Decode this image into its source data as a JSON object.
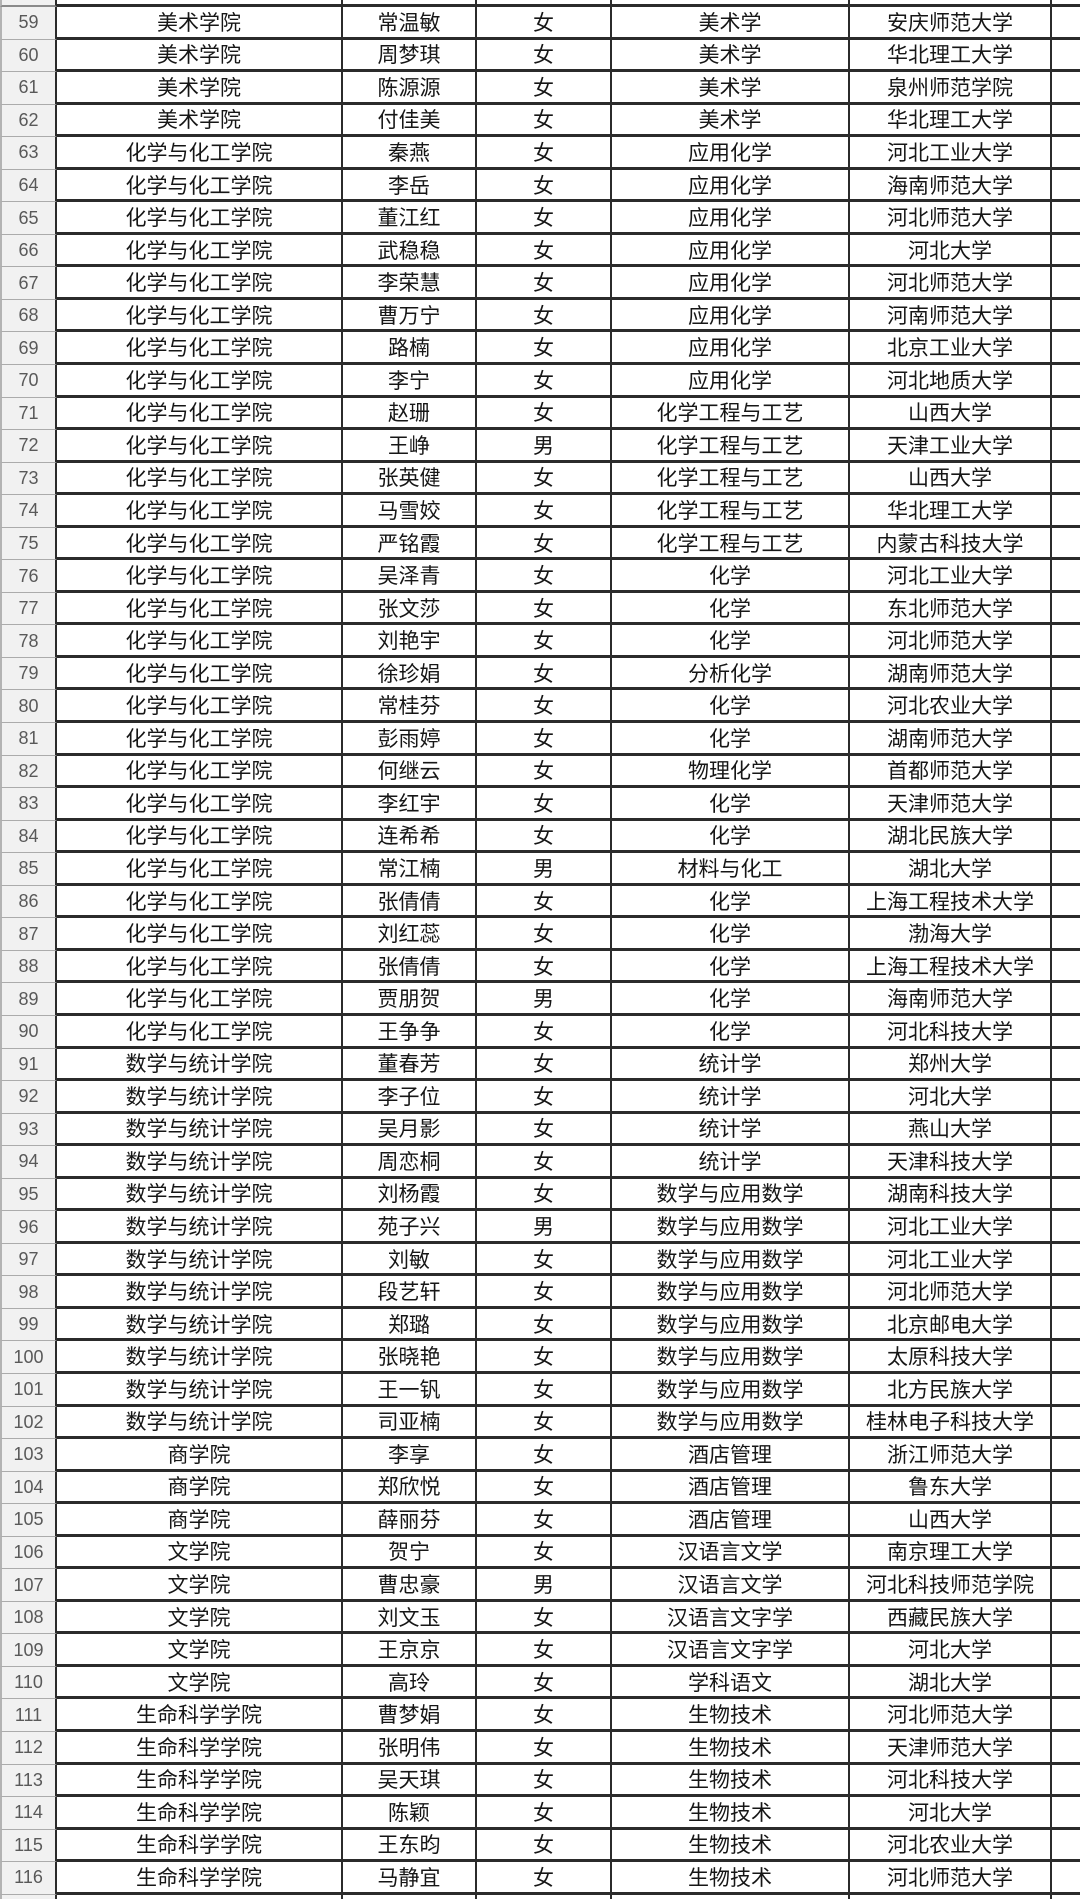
{
  "table": {
    "rows": [
      {
        "num": "59",
        "college": "美术学院",
        "name": "常温敏",
        "gender": "女",
        "major": "美术学",
        "university": "安庆师范大学"
      },
      {
        "num": "60",
        "college": "美术学院",
        "name": "周梦琪",
        "gender": "女",
        "major": "美术学",
        "university": "华北理工大学"
      },
      {
        "num": "61",
        "college": "美术学院",
        "name": "陈源源",
        "gender": "女",
        "major": "美术学",
        "university": "泉州师范学院"
      },
      {
        "num": "62",
        "college": "美术学院",
        "name": "付佳美",
        "gender": "女",
        "major": "美术学",
        "university": "华北理工大学"
      },
      {
        "num": "63",
        "college": "化学与化工学院",
        "name": "秦燕",
        "gender": "女",
        "major": "应用化学",
        "university": "河北工业大学"
      },
      {
        "num": "64",
        "college": "化学与化工学院",
        "name": "李岳",
        "gender": "女",
        "major": "应用化学",
        "university": "海南师范大学"
      },
      {
        "num": "65",
        "college": "化学与化工学院",
        "name": "董江红",
        "gender": "女",
        "major": "应用化学",
        "university": "河北师范大学"
      },
      {
        "num": "66",
        "college": "化学与化工学院",
        "name": "武稳稳",
        "gender": "女",
        "major": "应用化学",
        "university": "河北大学"
      },
      {
        "num": "67",
        "college": "化学与化工学院",
        "name": "李荣慧",
        "gender": "女",
        "major": "应用化学",
        "university": "河北师范大学"
      },
      {
        "num": "68",
        "college": "化学与化工学院",
        "name": "曹万宁",
        "gender": "女",
        "major": "应用化学",
        "university": "河南师范大学"
      },
      {
        "num": "69",
        "college": "化学与化工学院",
        "name": "路楠",
        "gender": "女",
        "major": "应用化学",
        "university": "北京工业大学"
      },
      {
        "num": "70",
        "college": "化学与化工学院",
        "name": "李宁",
        "gender": "女",
        "major": "应用化学",
        "university": "河北地质大学"
      },
      {
        "num": "71",
        "college": "化学与化工学院",
        "name": "赵珊",
        "gender": "女",
        "major": "化学工程与工艺",
        "university": "山西大学"
      },
      {
        "num": "72",
        "college": "化学与化工学院",
        "name": "王峥",
        "gender": "男",
        "major": "化学工程与工艺",
        "university": "天津工业大学"
      },
      {
        "num": "73",
        "college": "化学与化工学院",
        "name": "张英健",
        "gender": "女",
        "major": "化学工程与工艺",
        "university": "山西大学"
      },
      {
        "num": "74",
        "college": "化学与化工学院",
        "name": "马雪姣",
        "gender": "女",
        "major": "化学工程与工艺",
        "university": "华北理工大学"
      },
      {
        "num": "75",
        "college": "化学与化工学院",
        "name": "严铭霞",
        "gender": "女",
        "major": "化学工程与工艺",
        "university": "内蒙古科技大学"
      },
      {
        "num": "76",
        "college": "化学与化工学院",
        "name": "吴泽青",
        "gender": "女",
        "major": "化学",
        "university": "河北工业大学"
      },
      {
        "num": "77",
        "college": "化学与化工学院",
        "name": "张文莎",
        "gender": "女",
        "major": "化学",
        "university": "东北师范大学"
      },
      {
        "num": "78",
        "college": "化学与化工学院",
        "name": "刘艳宇",
        "gender": "女",
        "major": "化学",
        "university": "河北师范大学"
      },
      {
        "num": "79",
        "college": "化学与化工学院",
        "name": "徐珍娟",
        "gender": "女",
        "major": "分析化学",
        "university": "湖南师范大学"
      },
      {
        "num": "80",
        "college": "化学与化工学院",
        "name": "常桂芬",
        "gender": "女",
        "major": "化学",
        "university": "河北农业大学"
      },
      {
        "num": "81",
        "college": "化学与化工学院",
        "name": "彭雨婷",
        "gender": "女",
        "major": "化学",
        "university": "湖南师范大学"
      },
      {
        "num": "82",
        "college": "化学与化工学院",
        "name": "何继云",
        "gender": "女",
        "major": "物理化学",
        "university": "首都师范大学"
      },
      {
        "num": "83",
        "college": "化学与化工学院",
        "name": "李红宇",
        "gender": "女",
        "major": "化学",
        "university": "天津师范大学"
      },
      {
        "num": "84",
        "college": "化学与化工学院",
        "name": "连希希",
        "gender": "女",
        "major": "化学",
        "university": "湖北民族大学"
      },
      {
        "num": "85",
        "college": "化学与化工学院",
        "name": "常江楠",
        "gender": "男",
        "major": "材料与化工",
        "university": "湖北大学"
      },
      {
        "num": "86",
        "college": "化学与化工学院",
        "name": "张倩倩",
        "gender": "女",
        "major": "化学",
        "university": "上海工程技术大学"
      },
      {
        "num": "87",
        "college": "化学与化工学院",
        "name": "刘红蕊",
        "gender": "女",
        "major": "化学",
        "university": "渤海大学"
      },
      {
        "num": "88",
        "college": "化学与化工学院",
        "name": "张倩倩",
        "gender": "女",
        "major": "化学",
        "university": "上海工程技术大学"
      },
      {
        "num": "89",
        "college": "化学与化工学院",
        "name": "贾朋贺",
        "gender": "男",
        "major": "化学",
        "university": "海南师范大学"
      },
      {
        "num": "90",
        "college": "化学与化工学院",
        "name": "王争争",
        "gender": "女",
        "major": "化学",
        "university": "河北科技大学"
      },
      {
        "num": "91",
        "college": "数学与统计学院",
        "name": "董春芳",
        "gender": "女",
        "major": "统计学",
        "university": "郑州大学"
      },
      {
        "num": "92",
        "college": "数学与统计学院",
        "name": "李子位",
        "gender": "女",
        "major": "统计学",
        "university": "河北大学"
      },
      {
        "num": "93",
        "college": "数学与统计学院",
        "name": "吴月影",
        "gender": "女",
        "major": "统计学",
        "university": "燕山大学"
      },
      {
        "num": "94",
        "college": "数学与统计学院",
        "name": "周恋桐",
        "gender": "女",
        "major": "统计学",
        "university": "天津科技大学"
      },
      {
        "num": "95",
        "college": "数学与统计学院",
        "name": "刘杨霞",
        "gender": "女",
        "major": "数学与应用数学",
        "university": "湖南科技大学"
      },
      {
        "num": "96",
        "college": "数学与统计学院",
        "name": "苑子兴",
        "gender": "男",
        "major": "数学与应用数学",
        "university": "河北工业大学"
      },
      {
        "num": "97",
        "college": "数学与统计学院",
        "name": "刘敏",
        "gender": "女",
        "major": "数学与应用数学",
        "university": "河北工业大学"
      },
      {
        "num": "98",
        "college": "数学与统计学院",
        "name": "段艺轩",
        "gender": "女",
        "major": "数学与应用数学",
        "university": "河北师范大学"
      },
      {
        "num": "99",
        "college": "数学与统计学院",
        "name": "郑璐",
        "gender": "女",
        "major": "数学与应用数学",
        "university": "北京邮电大学"
      },
      {
        "num": "100",
        "college": "数学与统计学院",
        "name": "张晓艳",
        "gender": "女",
        "major": "数学与应用数学",
        "university": "太原科技大学"
      },
      {
        "num": "101",
        "college": "数学与统计学院",
        "name": "王一钒",
        "gender": "女",
        "major": "数学与应用数学",
        "university": "北方民族大学"
      },
      {
        "num": "102",
        "college": "数学与统计学院",
        "name": "司亚楠",
        "gender": "女",
        "major": "数学与应用数学",
        "university": "桂林电子科技大学"
      },
      {
        "num": "103",
        "college": "商学院",
        "name": "李享",
        "gender": "女",
        "major": "酒店管理",
        "university": "浙江师范大学"
      },
      {
        "num": "104",
        "college": "商学院",
        "name": "郑欣悦",
        "gender": "女",
        "major": "酒店管理",
        "university": "鲁东大学"
      },
      {
        "num": "105",
        "college": "商学院",
        "name": "薛丽芬",
        "gender": "女",
        "major": "酒店管理",
        "university": "山西大学"
      },
      {
        "num": "106",
        "college": "文学院",
        "name": "贺宁",
        "gender": "女",
        "major": "汉语言文学",
        "university": "南京理工大学"
      },
      {
        "num": "107",
        "college": "文学院",
        "name": "曹忠豪",
        "gender": "男",
        "major": "汉语言文学",
        "university": "河北科技师范学院"
      },
      {
        "num": "108",
        "college": "文学院",
        "name": "刘文玉",
        "gender": "女",
        "major": "汉语言文字学",
        "university": "西藏民族大学"
      },
      {
        "num": "109",
        "college": "文学院",
        "name": "王京京",
        "gender": "女",
        "major": "汉语言文字学",
        "university": "河北大学"
      },
      {
        "num": "110",
        "college": "文学院",
        "name": "高玲",
        "gender": "女",
        "major": "学科语文",
        "university": "湖北大学"
      },
      {
        "num": "111",
        "college": "生命科学学院",
        "name": "曹梦娟",
        "gender": "女",
        "major": "生物技术",
        "university": "河北师范大学"
      },
      {
        "num": "112",
        "college": "生命科学学院",
        "name": "张明伟",
        "gender": "女",
        "major": "生物技术",
        "university": "天津师范大学"
      },
      {
        "num": "113",
        "college": "生命科学学院",
        "name": "吴天琪",
        "gender": "女",
        "major": "生物技术",
        "university": "河北科技大学"
      },
      {
        "num": "114",
        "college": "生命科学学院",
        "name": "陈颖",
        "gender": "女",
        "major": "生物技术",
        "university": "河北大学"
      },
      {
        "num": "115",
        "college": "生命科学学院",
        "name": "王东昀",
        "gender": "女",
        "major": "生物技术",
        "university": "河北农业大学"
      },
      {
        "num": "116",
        "college": "生命科学学院",
        "name": "马静宜",
        "gender": "女",
        "major": "生物技术",
        "university": "河北师范大学"
      }
    ]
  }
}
